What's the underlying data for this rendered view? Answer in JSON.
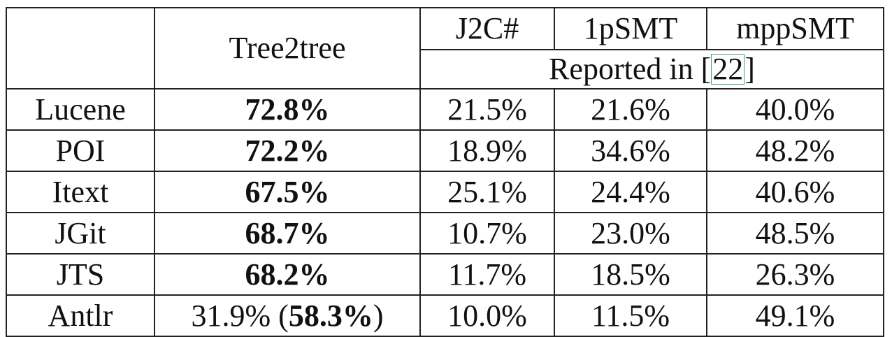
{
  "table": {
    "header": {
      "corner": "",
      "tree2tree": "Tree2tree",
      "j2c": "J2C#",
      "onepsmt": "1pSMT",
      "mppsmt": "mppSMT",
      "reported_prefix": "Reported in [",
      "reported_ref": "22",
      "reported_suffix": "]"
    },
    "rows": [
      {
        "project": "Lucene",
        "tree2tree": "72.8%",
        "j2c": "21.5%",
        "onepsmt": "21.6%",
        "mppsmt": "40.0%"
      },
      {
        "project": "POI",
        "tree2tree": "72.2%",
        "j2c": "18.9%",
        "onepsmt": "34.6%",
        "mppsmt": "48.2%"
      },
      {
        "project": "Itext",
        "tree2tree": "67.5%",
        "j2c": "25.1%",
        "onepsmt": "24.4%",
        "mppsmt": "40.6%"
      },
      {
        "project": "JGit",
        "tree2tree": "68.7%",
        "j2c": "10.7%",
        "onepsmt": "23.0%",
        "mppsmt": "48.5%"
      },
      {
        "project": "JTS",
        "tree2tree": "68.2%",
        "j2c": "11.7%",
        "onepsmt": "18.5%",
        "mppsmt": "26.3%"
      },
      {
        "project": "Antlr",
        "tree2tree_plain": "31.9% (",
        "tree2tree_bold": "58.3%",
        "tree2tree_close": ")",
        "j2c": "10.0%",
        "onepsmt": "11.5%",
        "mppsmt": "49.1%"
      }
    ]
  }
}
